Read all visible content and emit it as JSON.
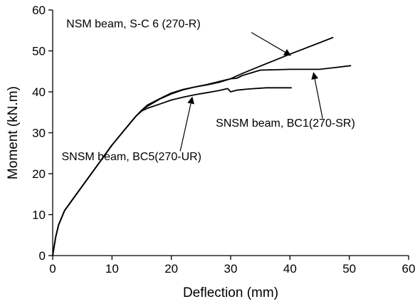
{
  "chart_data": {
    "type": "line",
    "title": "",
    "xlabel": "Deflection (mm)",
    "ylabel": "Moment (kN.m)",
    "xlim": [
      0,
      60
    ],
    "ylim": [
      0,
      60
    ],
    "xticks": [
      "0",
      "10",
      "20",
      "30",
      "40",
      "50",
      "60"
    ],
    "yticks": [
      "0",
      "10",
      "20",
      "30",
      "40",
      "50",
      "60"
    ],
    "grid": false,
    "legend": "none",
    "line_color": "#000000",
    "series": [
      {
        "name": "NSM beam, S-C 6 (270-R)",
        "x": [
          0,
          0.5,
          1,
          2,
          3,
          4,
          6,
          8,
          10,
          12,
          14,
          15,
          16,
          18,
          20,
          22,
          24,
          26,
          28,
          30,
          32,
          35,
          40,
          45,
          47.3
        ],
        "y": [
          0,
          4.5,
          7.5,
          11,
          13,
          15,
          19,
          23,
          27,
          30.5,
          34,
          35.5,
          36.5,
          38.2,
          39.5,
          40.5,
          41.2,
          41.8,
          42.5,
          43.2,
          44.5,
          46.3,
          49.2,
          52,
          53.3
        ]
      },
      {
        "name": "SNSM beam, BC1(270-SR)",
        "x": [
          0,
          0.5,
          1,
          2,
          3,
          4,
          6,
          8,
          10,
          12,
          14,
          15,
          16,
          18,
          20,
          22,
          24,
          26,
          28,
          30,
          31,
          32,
          35,
          40,
          45,
          48,
          50.3
        ],
        "y": [
          0,
          4.5,
          7.5,
          11,
          13,
          15,
          19,
          23,
          27,
          30.5,
          34,
          35.5,
          36.8,
          38.3,
          39.7,
          40.6,
          41.2,
          41.7,
          42.3,
          43.2,
          43.3,
          44.0,
          45.3,
          45.5,
          45.5,
          46,
          46.4
        ]
      },
      {
        "name": "SNSM beam, BC5(270-UR)",
        "x": [
          0,
          0.5,
          1,
          2,
          3,
          4,
          6,
          8,
          10,
          12,
          14,
          15,
          16,
          18,
          20,
          22,
          24,
          26,
          28,
          29.5,
          30,
          31,
          33,
          36,
          38,
          40.3
        ],
        "y": [
          0,
          4.5,
          7.5,
          11,
          13,
          15,
          19,
          23,
          27,
          30.5,
          34,
          35.3,
          36,
          37,
          38,
          38.7,
          39.3,
          39.8,
          40.3,
          40.8,
          40,
          40.4,
          40.7,
          41,
          41,
          41
        ]
      }
    ],
    "annotations": [
      {
        "text": "NSM beam, S-C 6 (270-R)",
        "label_at": [
          2.3,
          55.7
        ],
        "arrow_to": [
          40,
          49
        ]
      },
      {
        "text": "SNSM beam, BC1(270-SR)",
        "label_at": [
          27.5,
          31.5
        ],
        "arrow_to": [
          44,
          44.5
        ]
      },
      {
        "text": "SNSM beam, BC5(270-UR)",
        "label_at": [
          1.5,
          23.3
        ],
        "arrow_to": [
          23.5,
          38.5
        ]
      }
    ]
  }
}
